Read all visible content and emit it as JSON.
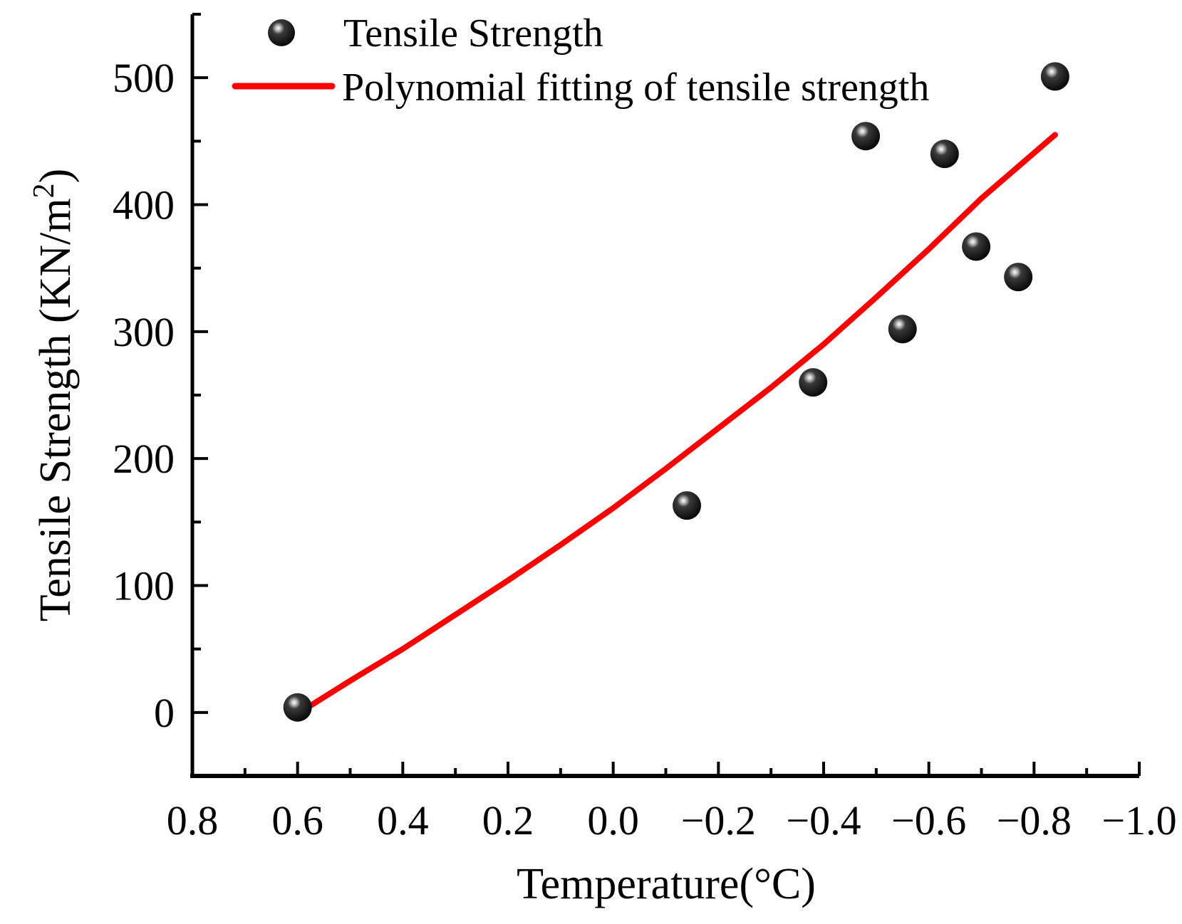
{
  "chart_data": {
    "type": "scatter",
    "title": "",
    "xlabel": "Temperature(°C)",
    "ylabel": "Tensile Strength (KN/m",
    "ylabel_superscript": "2",
    "ylabel_close": ")",
    "xlim": [
      0.8,
      -1.0
    ],
    "ylim": [
      -50,
      550
    ],
    "x_ticks": [
      0.8,
      0.6,
      0.4,
      0.2,
      0.0,
      -0.2,
      -0.4,
      -0.6,
      -0.8,
      -1.0
    ],
    "x_tick_labels": [
      "0.8",
      "0.6",
      "0.4",
      "0.2",
      "0.0",
      "−0.2",
      "−0.4",
      "−0.6",
      "−0.8",
      "−1.0"
    ],
    "y_ticks": [
      0,
      100,
      200,
      300,
      400,
      500
    ],
    "y_tick_labels": [
      "0",
      "100",
      "200",
      "300",
      "400",
      "500"
    ],
    "grid": false,
    "legend_position": "top-left",
    "series": [
      {
        "name": "Tensile Strength",
        "kind": "scatter",
        "color": "#000000",
        "x": [
          0.6,
          -0.14,
          -0.38,
          -0.48,
          -0.55,
          -0.63,
          -0.69,
          -0.77,
          -0.84
        ],
        "y": [
          4,
          163,
          260,
          454,
          302,
          440,
          367,
          343,
          501
        ]
      },
      {
        "name": "Polynomial fitting of tensile strength",
        "kind": "line",
        "color": "#ff0000",
        "x": [
          0.6,
          0.5,
          0.4,
          0.3,
          0.2,
          0.1,
          0.0,
          -0.1,
          -0.2,
          -0.3,
          -0.4,
          -0.5,
          -0.6,
          -0.7,
          -0.84
        ],
        "y": [
          -1,
          25,
          50,
          77,
          104,
          132,
          161,
          192,
          224,
          256,
          290,
          327,
          365,
          405,
          455
        ]
      }
    ]
  }
}
